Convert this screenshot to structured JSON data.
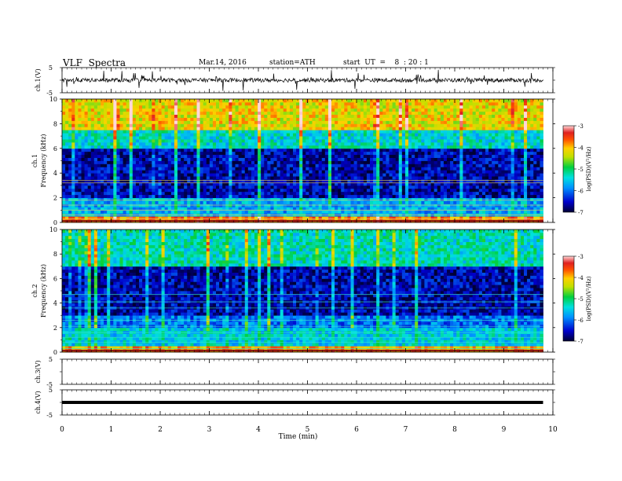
{
  "header": {
    "title": "VLF  Spectra",
    "date": "Mar.14, 2016",
    "station": "station=ATH",
    "start": "start  UT  =    8  : 20 : 1"
  },
  "chart_data": [
    {
      "type": "line",
      "panel": "ch1",
      "ylabel": "ch.1(V)",
      "ylim": [
        -5,
        5
      ],
      "yticks": [
        "5",
        "-5"
      ],
      "description_level": 0,
      "xlim": [
        0,
        10
      ]
    },
    {
      "type": "heatmap",
      "panel": "spec1",
      "ylabel": "ch.1  Frequency  (kHz)",
      "ylim": [
        0,
        10
      ],
      "yticks": [
        "0",
        "2",
        "4",
        "6",
        "8",
        "10"
      ],
      "xlim": [
        0,
        9.8
      ],
      "colorbar": {
        "label": "log(PSD)(V²/Hz)",
        "ticks": [
          "-3",
          "-4",
          "-5",
          "-6",
          "-7"
        ],
        "range": [
          -7,
          -3
        ]
      },
      "bands": [
        {
          "kHz": [
            0,
            0.5
          ],
          "logPSD": -3.8
        },
        {
          "kHz": [
            0.5,
            2
          ],
          "logPSD": -5.7
        },
        {
          "kHz": [
            2,
            6
          ],
          "logPSD": -6.6
        },
        {
          "kHz": [
            6,
            7.5
          ],
          "logPSD": -5.4
        },
        {
          "kHz": [
            7.5,
            10
          ],
          "logPSD": -4.2
        }
      ]
    },
    {
      "type": "heatmap",
      "panel": "spec2",
      "ylabel": "ch.2  Frequency  (kHz)",
      "ylim": [
        0,
        10
      ],
      "yticks": [
        "0",
        "2",
        "4",
        "6",
        "8",
        "10"
      ],
      "xlim": [
        0,
        9.8
      ],
      "colorbar": {
        "label": "log(PSD)(V²/Hz)",
        "ticks": [
          "-3",
          "-4",
          "-5",
          "-6",
          "-7"
        ],
        "range": [
          -7,
          -3
        ]
      },
      "bands": [
        {
          "kHz": [
            0,
            0.5
          ],
          "logPSD": -3.9
        },
        {
          "kHz": [
            0.5,
            2
          ],
          "logPSD": -5.5
        },
        {
          "kHz": [
            2,
            3
          ],
          "logPSD": -6.0
        },
        {
          "kHz": [
            3,
            7
          ],
          "logPSD": -6.6
        },
        {
          "kHz": [
            7,
            10
          ],
          "logPSD": -5.3
        }
      ]
    },
    {
      "type": "line",
      "panel": "ch3",
      "ylabel": "ch.3(V)",
      "ylim": [
        -5,
        5
      ],
      "yticks": [
        "5",
        "-5"
      ],
      "xlim": [
        0,
        10
      ]
    },
    {
      "type": "line",
      "panel": "ch4",
      "ylabel": "ch.4(V)",
      "ylim": [
        -5,
        5
      ],
      "yticks": [
        "5",
        "-5"
      ],
      "level": 0,
      "xlim": [
        0,
        9.8
      ]
    }
  ],
  "xaxis": {
    "label": "Time  (min)",
    "ticks": [
      "0",
      "1",
      "2",
      "3",
      "4",
      "5",
      "6",
      "7",
      "8",
      "9",
      "10"
    ],
    "range": [
      0,
      10
    ]
  }
}
